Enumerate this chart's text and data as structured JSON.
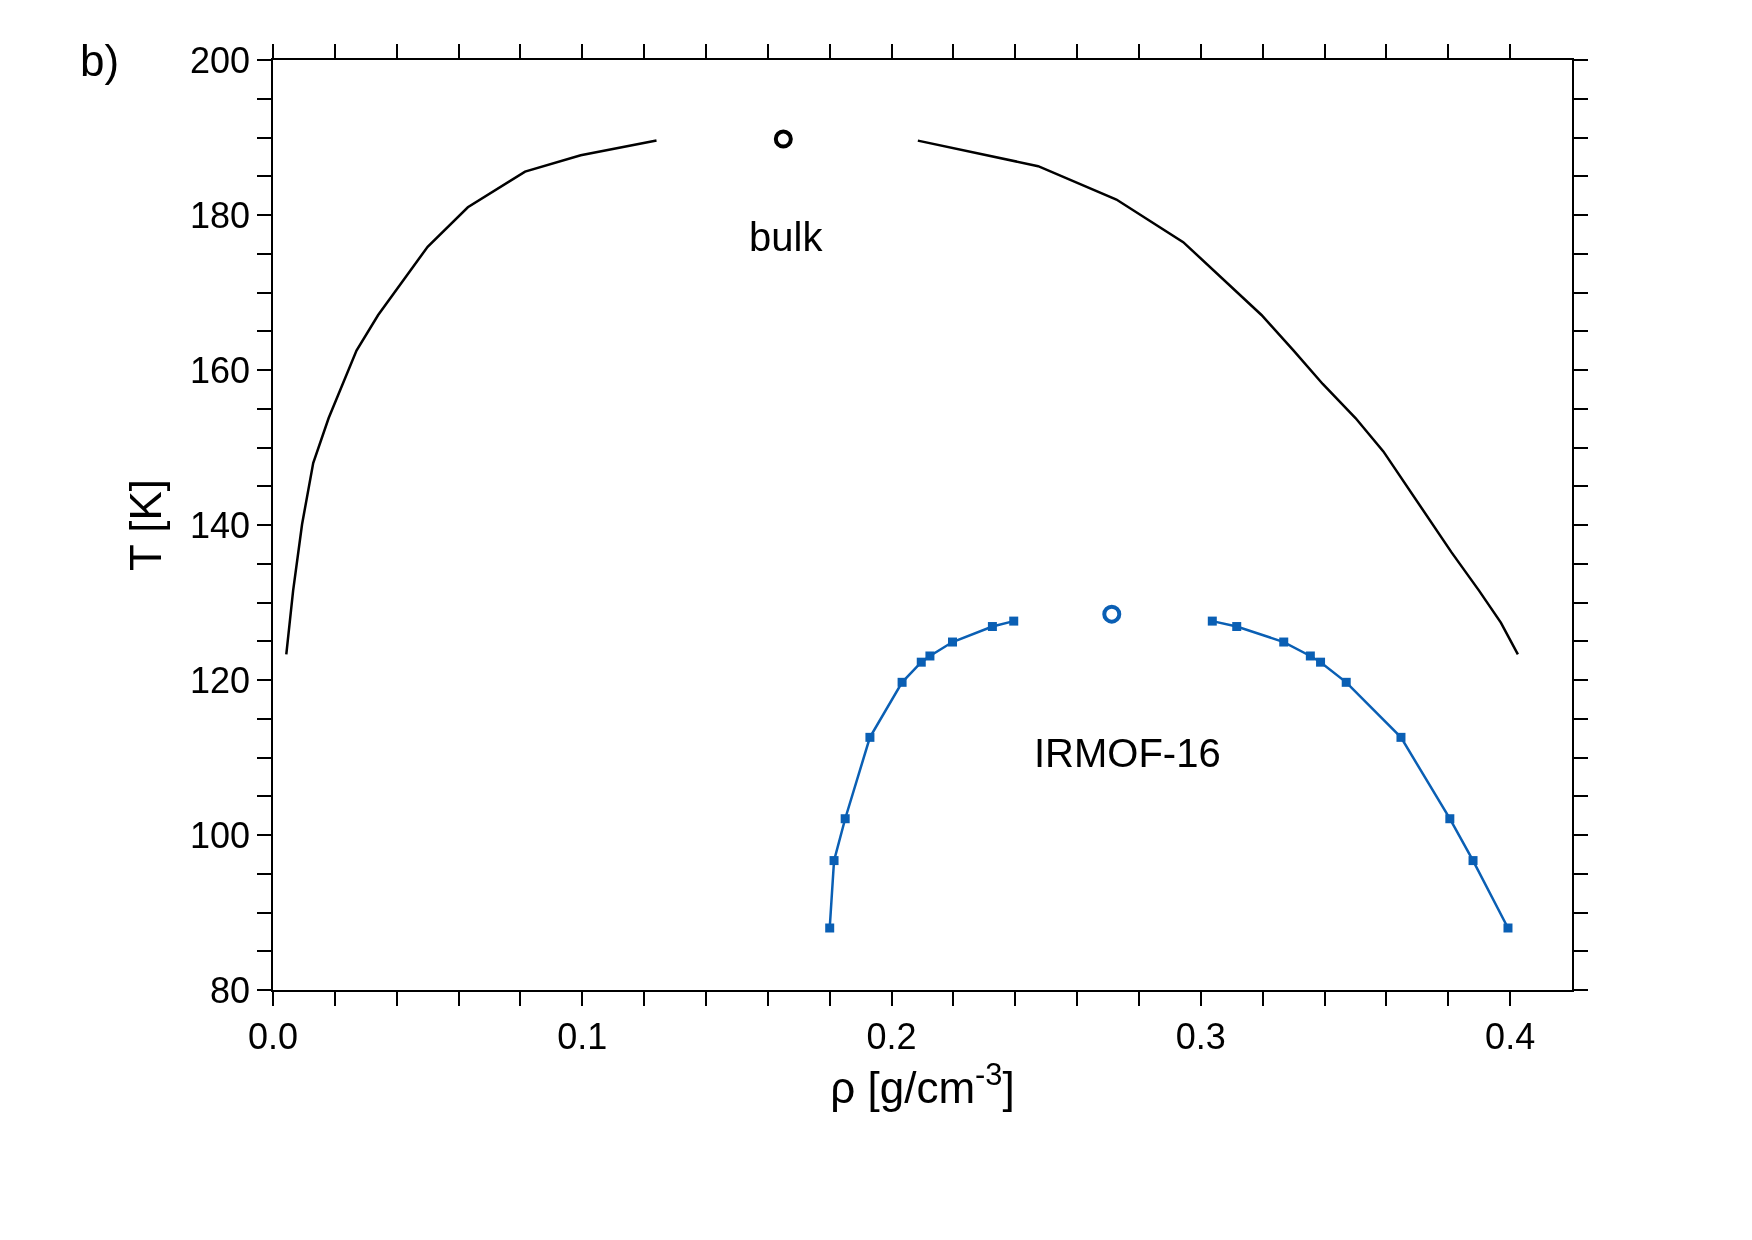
{
  "chart_data": {
    "type": "line",
    "xlabel": "ρ [g/cm$^{-3}$]",
    "ylabel": "T [K]",
    "xlim": [
      0,
      0.42
    ],
    "ylim": [
      80,
      200
    ],
    "xticks": [
      {
        "value": 0,
        "label": "0.0"
      },
      {
        "value": 0.02,
        "label": null
      },
      {
        "value": 0.04,
        "label": null
      },
      {
        "value": 0.06,
        "label": null
      },
      {
        "value": 0.08,
        "label": null
      },
      0.1,
      {
        "value": 0.12,
        "label": null
      },
      {
        "value": 0.14,
        "label": null
      },
      {
        "value": 0.16,
        "label": null
      },
      {
        "value": 0.18,
        "label": null
      },
      0.2,
      {
        "value": 0.22,
        "label": null
      },
      {
        "value": 0.24,
        "label": null
      },
      {
        "value": 0.26,
        "label": null
      },
      {
        "value": 0.28,
        "label": null
      },
      0.3,
      {
        "value": 0.32,
        "label": null
      },
      {
        "value": 0.34,
        "label": null
      },
      {
        "value": 0.36,
        "label": null
      },
      {
        "value": 0.38,
        "label": null
      },
      0.4
    ],
    "yticks": [
      80,
      {
        "value": 85,
        "label": null
      },
      {
        "value": 90,
        "label": null
      },
      {
        "value": 95,
        "label": null
      },
      100,
      {
        "value": 105,
        "label": null
      },
      {
        "value": 110,
        "label": null
      },
      {
        "value": 115,
        "label": null
      },
      120,
      {
        "value": 125,
        "label": null
      },
      {
        "value": 130,
        "label": null
      },
      {
        "value": 135,
        "label": null
      },
      140,
      {
        "value": 145,
        "label": null
      },
      {
        "value": 150,
        "label": null
      },
      {
        "value": 155,
        "label": null
      },
      160,
      {
        "value": 165,
        "label": null
      },
      {
        "value": 170,
        "label": null
      },
      {
        "value": 175,
        "label": null
      },
      180,
      {
        "value": 185,
        "label": null
      },
      {
        "value": 190,
        "label": null
      },
      {
        "value": 195,
        "label": null
      },
      200
    ],
    "series": [
      {
        "color": "#000000",
        "marker": "none",
        "x": [
          0.0043,
          0.0065,
          0.0094,
          0.013,
          0.018,
          0.027,
          0.034,
          0.05,
          0.063,
          0.0815,
          0.0995,
          0.124
        ],
        "values": [
          123.3,
          131.5,
          140.1,
          148,
          153.8,
          162.5,
          167.1,
          175.9,
          181,
          185.6,
          187.7,
          189.6
        ]
      },
      {
        "color": "#000000",
        "marker": "none",
        "x": [
          0.2085,
          0.2474,
          0.2727,
          0.2943,
          0.3196,
          0.33,
          0.3394,
          0.35,
          0.359,
          0.381,
          0.39,
          0.397,
          0.4025
        ],
        "values": [
          189.6,
          186.3,
          182,
          176.5,
          167.1,
          162.5,
          158.2,
          153.8,
          149.5,
          136.5,
          131.5,
          127.4,
          123.3
        ]
      },
      {
        "type": "scatter",
        "color": "#000000",
        "marker": "circle",
        "x": [
          0.165
        ],
        "values": [
          189.8
        ]
      },
      {
        "color": "#0a5fb4",
        "marker": "square",
        "x": [
          0.18,
          0.1814,
          0.185,
          0.193,
          0.2034,
          0.2096,
          0.2124,
          0.2197,
          0.2326,
          0.2395
        ],
        "values": [
          88.0,
          96.7,
          102.1,
          112.6,
          119.7,
          122.3,
          123.1,
          124.9,
          126.9,
          127.6
        ]
      },
      {
        "color": "#0a5fb4",
        "marker": "square",
        "x": [
          0.3037,
          0.3116,
          0.3268,
          0.3354,
          0.3387,
          0.347,
          0.3647,
          0.3805,
          0.388,
          0.3993
        ],
        "values": [
          127.6,
          126.9,
          124.9,
          123.1,
          122.3,
          119.7,
          112.6,
          102.1,
          96.7,
          88.0
        ]
      },
      {
        "type": "scatter",
        "color": "#0a5fb4",
        "marker": "circle",
        "x": [
          0.2712
        ],
        "values": [
          128.5
        ]
      }
    ],
    "annotations": [
      "b)",
      "bulk",
      "IRMOF-16"
    ]
  }
}
